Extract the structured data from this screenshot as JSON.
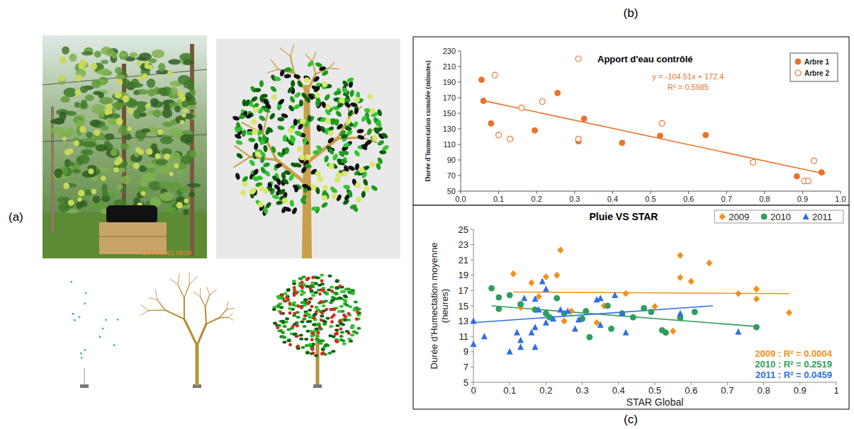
{
  "figure": {
    "panel_labels": [
      "(a)",
      "(b)",
      "(c)"
    ],
    "photo_timestamp": "29/06/2011 08:05"
  },
  "chart_data": [
    {
      "type": "scatter",
      "title": "Apport d'eau contrôlé",
      "y_label": "Durée d'humectation cumulée (minutes)",
      "xlim": [
        0,
        1
      ],
      "xticks": [
        {
          "value": 0,
          "label": "0.0"
        },
        0.1,
        0.2,
        0.3,
        0.4,
        0.5,
        0.6,
        0.7,
        0.8,
        0.9,
        {
          "value": 1,
          "label": "1.0"
        }
      ],
      "ylim": [
        50,
        230
      ],
      "yticks": [
        50,
        70,
        90,
        110,
        130,
        150,
        170,
        190,
        210,
        230
      ],
      "grid": false,
      "legend": "top-right",
      "series": [
        {
          "name": "Arbre 1",
          "color": "#e8742a",
          "marker": "circle",
          "x": [
            0.055,
            0.06,
            0.08,
            0.195,
            0.255,
            0.31,
            0.325,
            0.425,
            0.525,
            0.645,
            0.885,
            0.95
          ],
          "values": [
            193,
            166,
            137,
            128,
            176,
            114,
            143,
            112,
            121,
            122,
            69,
            74
          ]
        },
        {
          "name": "Arbre 2",
          "color": "#e8742a",
          "marker": "circle-open",
          "x": [
            0.09,
            0.1,
            0.13,
            0.16,
            0.215,
            0.31,
            0.31,
            0.53,
            0.77,
            0.905,
            0.915,
            0.93
          ],
          "values": [
            199,
            122,
            117,
            157,
            165,
            220,
            117,
            137,
            87,
            63,
            63,
            89
          ]
        }
      ],
      "trendline": {
        "color": "#e8742a",
        "x": [
          0.055,
          0.96
        ],
        "values": [
          166.7,
          72.1
        ]
      },
      "annotations": [
        "y = -104.51x + 172.4",
        "R² = 0.5985"
      ]
    },
    {
      "type": "scatter",
      "title": "Pluie VS STAR",
      "x_label": "STAR Global",
      "y_label": "Durée d'Humectation moyenne (heures)",
      "xlim": [
        0,
        1
      ],
      "xticks": [
        0,
        0.1,
        0.2,
        0.3,
        0.4,
        0.5,
        0.6,
        0.7,
        0.8,
        0.9,
        1
      ],
      "ylim": [
        5,
        25
      ],
      "yticks": [
        5,
        7,
        9,
        11,
        13,
        15,
        17,
        19,
        21,
        23,
        25
      ],
      "grid": false,
      "legend": "top-right",
      "series": [
        {
          "name": "2009",
          "color": "#f39019",
          "marker": "diamond",
          "x": [
            0.11,
            0.13,
            0.16,
            0.18,
            0.2,
            0.23,
            0.24,
            0.25,
            0.27,
            0.34,
            0.36,
            0.42,
            0.5,
            0.55,
            0.57,
            0.57,
            0.6,
            0.65,
            0.73,
            0.78,
            0.78,
            0.87
          ],
          "values": [
            19.2,
            14.8,
            18,
            16.2,
            18.8,
            19,
            22.3,
            13,
            14.3,
            12.8,
            15,
            16.6,
            14.9,
            11.7,
            18.7,
            21.6,
            18.2,
            20.6,
            16.6,
            17.2,
            15.9,
            14.1
          ],
          "trendline": {
            "x": [
              0.11,
              0.87
            ],
            "values": [
              16.8,
              16.6
            ]
          },
          "annotation": "2009 : R² = 0.0004"
        },
        {
          "name": "2010",
          "color": "#2e9e5b",
          "marker": "circle",
          "x": [
            0.05,
            0.07,
            0.07,
            0.1,
            0.13,
            0.17,
            0.2,
            0.21,
            0.23,
            0.25,
            0.3,
            0.31,
            0.32,
            0.37,
            0.38,
            0.41,
            0.44,
            0.47,
            0.49,
            0.52,
            0.53,
            0.57,
            0.61,
            0.78
          ],
          "values": [
            17.3,
            16.1,
            14.6,
            16.4,
            15.2,
            14.5,
            14,
            13.5,
            16,
            14,
            13.3,
            14.3,
            10.9,
            15,
            12,
            14,
            13.5,
            14.7,
            14.2,
            11.8,
            11.5,
            13.4,
            14.2,
            12.2
          ],
          "trendline": {
            "x": [
              0.05,
              0.78
            ],
            "values": [
              15.0,
              12.3
            ]
          },
          "annotation": "2010 : R² = 0.2519"
        },
        {
          "name": "2011",
          "color": "#2f6fe0",
          "marker": "triangle",
          "x": [
            0,
            0,
            0.03,
            0.1,
            0.12,
            0.13,
            0.13,
            0.14,
            0.16,
            0.17,
            0.17,
            0.17,
            0.18,
            0.19,
            0.2,
            0.2,
            0.22,
            0.24,
            0.26,
            0.28,
            0.29,
            0.34,
            0.35,
            0.35,
            0.39,
            0.41,
            0.42,
            0.57,
            0.73
          ],
          "values": [
            13,
            10,
            11,
            9,
            11.5,
            10.5,
            9.6,
            16,
            11.5,
            12.2,
            15.9,
            9.6,
            14.5,
            18.2,
            17.2,
            12.8,
            13.3,
            14.5,
            14.3,
            12,
            13.2,
            15.8,
            16,
            12.5,
            16.4,
            14,
            11.5,
            14,
            11.6
          ],
          "trendline": {
            "x": [
              0,
              0.66
            ],
            "values": [
              12.8,
              15.0
            ]
          },
          "annotation": "2011 : R² = 0.0459"
        }
      ]
    }
  ]
}
